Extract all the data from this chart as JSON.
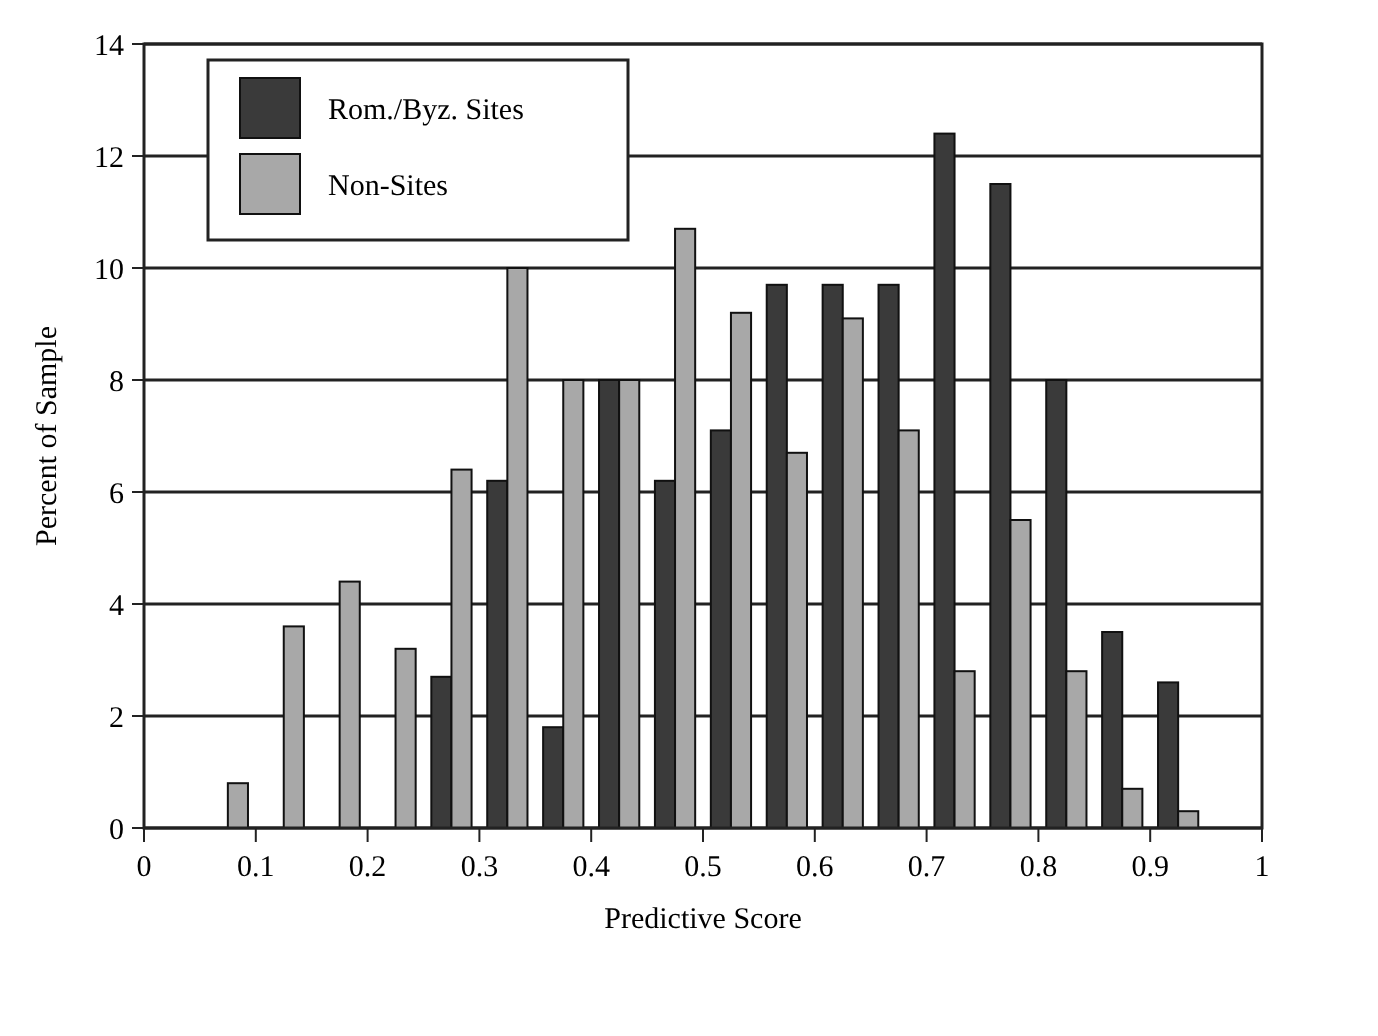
{
  "chart_data": {
    "type": "bar",
    "xlabel": "Predictive Score",
    "ylabel": "Percent of Sample",
    "x": [
      0.075,
      0.125,
      0.175,
      0.225,
      0.275,
      0.325,
      0.375,
      0.425,
      0.475,
      0.525,
      0.575,
      0.625,
      0.675,
      0.725,
      0.775,
      0.825,
      0.875,
      0.925
    ],
    "series": [
      {
        "name": "Rom./Byz. Sites",
        "color": "#3a3a3a",
        "values": [
          0,
          0,
          0,
          0,
          2.7,
          6.2,
          1.8,
          8,
          6.2,
          7.1,
          9.7,
          9.7,
          9.7,
          12.4,
          11.5,
          8,
          3.5,
          2.6
        ]
      },
      {
        "name": "Non-Sites",
        "color": "#a8a8a8",
        "values": [
          0.8,
          3.6,
          4.4,
          3.2,
          6.4,
          10,
          8,
          8,
          10.7,
          9.2,
          6.7,
          9.1,
          7.1,
          2.8,
          5.5,
          2.8,
          0.7,
          0.3
        ]
      }
    ],
    "xlim": [
      0,
      1
    ],
    "xticks": [
      0,
      0.1,
      0.2,
      0.3,
      0.4,
      0.5,
      0.6,
      0.7,
      0.8,
      0.9,
      1
    ],
    "ylim": [
      0,
      14
    ],
    "yticks": [
      0,
      2,
      4,
      6,
      8,
      10,
      12,
      14
    ],
    "grid": "y",
    "legend": "top left"
  }
}
